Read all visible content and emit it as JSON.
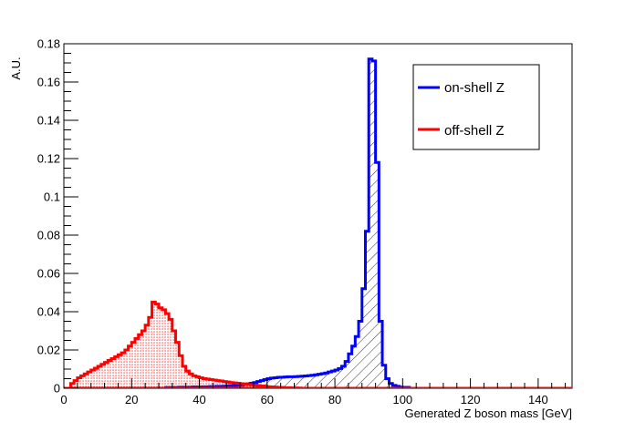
{
  "chart_data": {
    "type": "histogram",
    "xlabel": "Generated Z boson mass [GeV]",
    "ylabel": "A.U.",
    "xlim": [
      0,
      150
    ],
    "ylim": [
      0,
      0.18
    ],
    "bin_width": 1,
    "x_ticks": [
      0,
      20,
      40,
      60,
      80,
      100,
      120,
      140
    ],
    "y_ticks": [
      0,
      0.02,
      0.04,
      0.06,
      0.08,
      0.1,
      0.12,
      0.14,
      0.16,
      0.18
    ],
    "x_tick_labels": [
      "0",
      "20",
      "40",
      "60",
      "80",
      "100",
      "120",
      "140"
    ],
    "y_tick_labels": [
      "0",
      "0.02",
      "0.04",
      "0.06",
      "0.08",
      "0.1",
      "0.12",
      "0.14",
      "0.16",
      "0.18"
    ],
    "legend_position": "top-right",
    "series": [
      {
        "name": "on-shell Z",
        "color": "#0000ff",
        "fill": "diagonal-hatch",
        "values": [
          0,
          0,
          0,
          0,
          0,
          0,
          0,
          0,
          0,
          0,
          0,
          0,
          0,
          0,
          0,
          0,
          0,
          0,
          0,
          0,
          0,
          0,
          0,
          0,
          0,
          0,
          0,
          0,
          0,
          0,
          0.0005,
          0.0005,
          0.0005,
          0.0005,
          0.0006,
          0.0006,
          0.0006,
          0.0006,
          0.0007,
          0.0007,
          0.0007,
          0.0008,
          0.0008,
          0.0009,
          0.0009,
          0.001,
          0.001,
          0.0011,
          0.0012,
          0.0013,
          0.0014,
          0.0016,
          0.0018,
          0.002,
          0.0023,
          0.0026,
          0.003,
          0.0035,
          0.004,
          0.0045,
          0.005,
          0.0053,
          0.0055,
          0.0057,
          0.0058,
          0.0059,
          0.006,
          0.006,
          0.0061,
          0.0062,
          0.0063,
          0.0064,
          0.0066,
          0.0068,
          0.007,
          0.0073,
          0.0076,
          0.008,
          0.0085,
          0.009,
          0.0095,
          0.0103,
          0.0115,
          0.014,
          0.018,
          0.022,
          0.027,
          0.035,
          0.052,
          0.082,
          0.172,
          0.171,
          0.118,
          0.035,
          0.012,
          0.005,
          0.0025,
          0.0015,
          0.001,
          0.0006,
          0.0005,
          0.0005,
          0,
          0,
          0,
          0,
          0,
          0,
          0,
          0,
          0,
          0,
          0,
          0,
          0,
          0,
          0,
          0,
          0,
          0,
          0,
          0,
          0,
          0,
          0,
          0,
          0,
          0,
          0,
          0,
          0,
          0,
          0,
          0,
          0,
          0,
          0,
          0,
          0,
          0,
          0,
          0,
          0,
          0,
          0,
          0,
          0,
          0,
          0,
          0,
          0
        ]
      },
      {
        "name": "off-shell Z",
        "color": "#ff0000",
        "fill": "dotted",
        "values": [
          0,
          0,
          0.0025,
          0.004,
          0.0055,
          0.0065,
          0.0075,
          0.0085,
          0.0095,
          0.0105,
          0.0115,
          0.0125,
          0.0135,
          0.0145,
          0.0155,
          0.0165,
          0.0175,
          0.0185,
          0.02,
          0.022,
          0.024,
          0.026,
          0.028,
          0.03,
          0.033,
          0.037,
          0.045,
          0.044,
          0.042,
          0.041,
          0.039,
          0.036,
          0.03,
          0.024,
          0.017,
          0.0115,
          0.009,
          0.0075,
          0.0065,
          0.006,
          0.0055,
          0.005,
          0.0048,
          0.0045,
          0.0043,
          0.004,
          0.0038,
          0.0035,
          0.0033,
          0.003,
          0.0028,
          0.0026,
          0.0024,
          0.0022,
          0.002,
          0.0018,
          0.0016,
          0.0014,
          0.0012,
          0.001,
          0.0008,
          0.0007,
          0.0006,
          0.0005,
          0.0004,
          0.0003,
          0.0003,
          0.0002,
          0.0002,
          0.0001,
          0,
          0,
          0,
          0,
          0,
          0,
          0,
          0,
          0,
          0,
          0,
          0,
          0,
          0,
          0,
          0,
          0,
          0,
          0,
          0,
          0,
          0,
          0,
          0,
          0,
          0,
          0,
          0,
          0,
          0,
          0,
          0,
          0,
          0,
          0,
          0,
          0,
          0,
          0,
          0,
          0,
          0,
          0,
          0,
          0,
          0,
          0,
          0,
          0,
          0,
          0,
          0,
          0,
          0,
          0,
          0,
          0,
          0,
          0,
          0,
          0,
          0,
          0,
          0,
          0,
          0,
          0,
          0,
          0,
          0,
          0,
          0,
          0,
          0,
          0,
          0,
          0,
          0,
          0,
          0,
          0,
          0,
          0,
          0,
          0,
          0
        ]
      }
    ]
  }
}
